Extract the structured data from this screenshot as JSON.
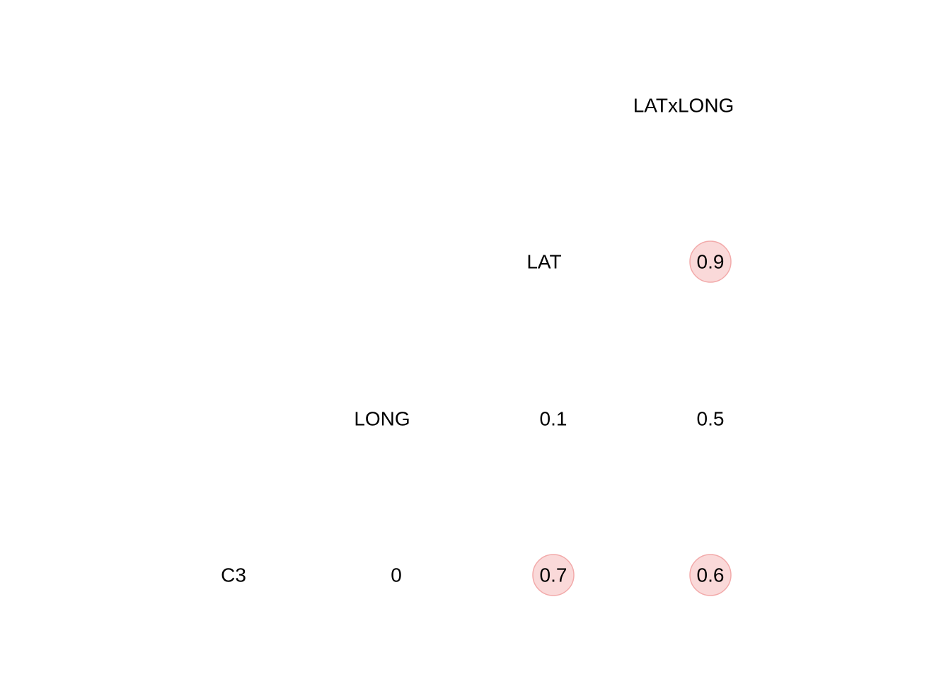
{
  "chart_data": {
    "type": "heatmap",
    "variables": [
      "C3",
      "LONG",
      "LAT",
      "LATxLONG"
    ],
    "cells": [
      {
        "row": "LAT",
        "col": "LATxLONG",
        "value": 0.9,
        "label": "0.9",
        "highlight": true
      },
      {
        "row": "LONG",
        "col": "LAT",
        "value": 0.1,
        "label": "0.1",
        "highlight": false
      },
      {
        "row": "LONG",
        "col": "LATxLONG",
        "value": 0.5,
        "label": "0.5",
        "highlight": false
      },
      {
        "row": "C3",
        "col": "LONG",
        "value": 0,
        "label": "0",
        "highlight": false
      },
      {
        "row": "C3",
        "col": "LAT",
        "value": 0.7,
        "label": "0.7",
        "highlight": true
      },
      {
        "row": "C3",
        "col": "LATxLONG",
        "value": 0.6,
        "label": "0.6",
        "highlight": true
      }
    ],
    "highlight_fill": "#f8cccc",
    "highlight_stroke": "#f2aaaa",
    "text_color": "#000000",
    "grid": false,
    "legend": "none"
  }
}
